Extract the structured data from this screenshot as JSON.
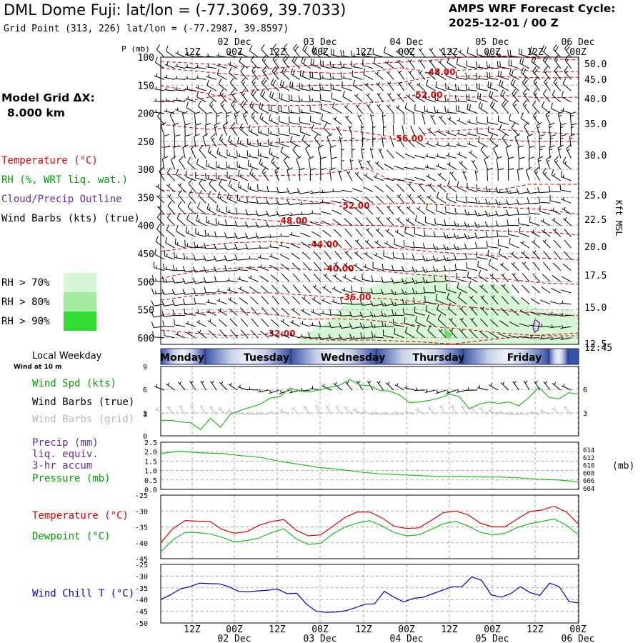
{
  "header": {
    "title": "DML Dome Fuji:  lat/lon = (-77.3069, 39.7033)",
    "grid_point": "Grid Point (313, 226) lat/lon = (-77.2987, 39.8597)",
    "forecast_cycle_label": "AMPS WRF Forecast Cycle:",
    "forecast_cycle_value": "2025-12-01 / 00  Z",
    "model_grid_label": "Model Grid ΔX:",
    "model_grid_value": "8.000 km"
  },
  "legend": {
    "temperature": "Temperature (°C)",
    "rh": "RH (%, WRT liq. wat.)",
    "cloud": "Cloud/Precip Outline",
    "wind": "Wind Barbs (kts) (true)",
    "rh70": "RH > 70%",
    "rh80": "RH > 80%",
    "rh90": "RH > 90%",
    "local_weekday": "Local Weekday",
    "wind_at": "Wind at 10 m",
    "wind_spd": "Wind Spd (kts)",
    "wind_barbs_true": "Wind Barbs (true)",
    "wind_barbs_grid": "Wind Barbs (grid)",
    "precip_1": "Precip (mm)",
    "precip_2": "liq. equiv.",
    "precip_3": "3-hr accum",
    "pressure": "Pressure (mb)",
    "temp2": "Temperature (°C)",
    "dewpoint": "Dewpoint (°C)",
    "windchill": "Wind Chill T (°C)",
    "kft": "Kft MSL",
    "mb": "(mb)"
  },
  "colors": {
    "temperature": "#e00000",
    "rh": "#00a000",
    "cloud": "#6a2a9c",
    "wind": "#000000",
    "grid_wind": "#b8b8b8",
    "rh70": "#d6f7d6",
    "rh80": "#a3eaa3",
    "rh90": "#33dd33",
    "pressure_line": "#22bb22",
    "windchill": "#0000bb"
  },
  "chart_data": [
    {
      "type": "line",
      "name": "cross-section",
      "title": "Pressure-time cross section",
      "ylabel": "P (mb)",
      "ylim": [
        100,
        610
      ],
      "y_ticks": [
        "100",
        "150",
        "200",
        "250",
        "300",
        "350",
        "400",
        "450",
        "500",
        "550",
        "600"
      ],
      "right_ticks": [
        "50.0",
        "45.0",
        "40.0",
        "35.0",
        "30.0",
        "25.0",
        "22.5",
        "20.0",
        "17.5",
        "15.0",
        "12.5",
        "12.45"
      ],
      "x_top_ticks": [
        "12Z",
        "00Z",
        "12Z",
        "00Z",
        "12Z",
        "00Z",
        "12Z",
        "00Z",
        "12Z",
        "00Z"
      ],
      "date_labels": [
        "02 Dec",
        "03 Dec",
        "04 Dec",
        "05 Dec",
        "06 Dec"
      ],
      "contour_labels": [
        "-48.00",
        "-52.00",
        "-56.00",
        "-52.00",
        "-48.00",
        "-44.00",
        "-40.00",
        "-36.00",
        "-32.00"
      ]
    },
    {
      "type": "table",
      "name": "weekday-bar",
      "days": [
        "Monday",
        "Tuesday",
        "Wednesday",
        "Thursday",
        "Friday"
      ]
    },
    {
      "type": "line",
      "name": "wind-speed",
      "ylim": [
        0,
        9
      ],
      "y_ticks": [
        "9",
        "6",
        "3",
        "0"
      ],
      "series": [
        {
          "name": "Wind Spd (kts)",
          "values": [
            2.0,
            2.0,
            1.8,
            1.7,
            0.8,
            2.3,
            1.1,
            2.8,
            3.3,
            3.7,
            4.1,
            4.9,
            5.1,
            6.2,
            5.8,
            5.7,
            6.0,
            6.3,
            6.6,
            7.3,
            6.6,
            6.5,
            5.9,
            5.8,
            5.3,
            4.3,
            4.4,
            4.6,
            4.9,
            5.4,
            5.1,
            3.5,
            4.1,
            4.4,
            4.2,
            4.4,
            3.9,
            5.0,
            6.3,
            5.0,
            4.8,
            5.6,
            5.4
          ]
        }
      ]
    },
    {
      "type": "line",
      "name": "precip-pressure",
      "ylim": [
        0,
        2.5
      ],
      "y_ticks": [
        "2.5",
        "2.0",
        "1.5",
        "1.0",
        "0.5",
        "0.0"
      ],
      "right_ticks": [
        "614",
        "612",
        "610",
        "608",
        "606",
        "604"
      ],
      "series": [
        {
          "name": "Pressure (mb)",
          "values": [
            612.1,
            612.6,
            612.2,
            612.1,
            611.6,
            611.2,
            610.3,
            609.6,
            608.9,
            608.5,
            607.9,
            607.5,
            607.3,
            607.1,
            606.9,
            606.9,
            606.8,
            606.8,
            606.6,
            606.3,
            606.1,
            605.7
          ]
        }
      ]
    },
    {
      "type": "line",
      "name": "temperature-dewpoint",
      "ylim": [
        -45,
        -25
      ],
      "y_ticks": [
        "-25",
        "-30",
        "-35",
        "-40",
        "-45"
      ],
      "series": [
        {
          "name": "Temperature (°C)",
          "values": [
            -40.0,
            -35.5,
            -33.0,
            -33.2,
            -33.3,
            -35.8,
            -37.0,
            -36.5,
            -34.5,
            -33.3,
            -32.7,
            -36.0,
            -37.8,
            -37.5,
            -34.8,
            -32.0,
            -30.3,
            -30.3,
            -32.2,
            -34.8,
            -35.5,
            -35.3,
            -33.0,
            -30.5,
            -30.0,
            -31.2,
            -33.8,
            -35.0,
            -35.0,
            -32.5,
            -30.2,
            -29.7,
            -28.5,
            -30.3,
            -34.2
          ]
        },
        {
          "name": "Dewpoint (°C)",
          "values": [
            -42.8,
            -39.0,
            -36.7,
            -36.8,
            -37.2,
            -38.3,
            -39.7,
            -39.3,
            -38.5,
            -36.8,
            -35.6,
            -38.7,
            -40.5,
            -40.2,
            -37.2,
            -35.0,
            -33.8,
            -33.0,
            -34.7,
            -36.8,
            -37.8,
            -37.5,
            -35.8,
            -34.0,
            -33.3,
            -34.7,
            -36.7,
            -37.5,
            -37.0,
            -35.2,
            -34.0,
            -33.3,
            -32.5,
            -34.5,
            -37.5
          ]
        }
      ]
    },
    {
      "type": "line",
      "name": "wind-chill",
      "ylim": [
        -50,
        -25
      ],
      "y_ticks": [
        "-25",
        "-30",
        "-35",
        "-40",
        "-45",
        "-50"
      ],
      "x_bottom_ticks": [
        "12Z",
        "00Z",
        "12Z",
        "00Z",
        "12Z",
        "00Z",
        "12Z",
        "00Z",
        "12Z",
        "00Z"
      ],
      "date_labels": [
        "02 Dec",
        "03 Dec",
        "04 Dec",
        "05 Dec",
        "06 Dec"
      ],
      "series": [
        {
          "name": "Wind Chill T (°C)",
          "values": [
            -40.0,
            -38.0,
            -35.5,
            -34.5,
            -33.0,
            -33.2,
            -33.3,
            -34.5,
            -36.5,
            -36.7,
            -36.3,
            -36.0,
            -35.5,
            -37.5,
            -37.3,
            -42.0,
            -45.0,
            -45.5,
            -45.3,
            -44.8,
            -43.5,
            -42.0,
            -41.8,
            -36.5,
            -39.0,
            -41.0,
            -39.5,
            -39.0,
            -37.5,
            -36.0,
            -34.5,
            -34.5,
            -30.3,
            -31.8,
            -38.0,
            -39.0,
            -37.5,
            -34.5,
            -37.0,
            -38.2,
            -33.0,
            -34.5,
            -40.8,
            -41.5
          ]
        }
      ]
    }
  ]
}
